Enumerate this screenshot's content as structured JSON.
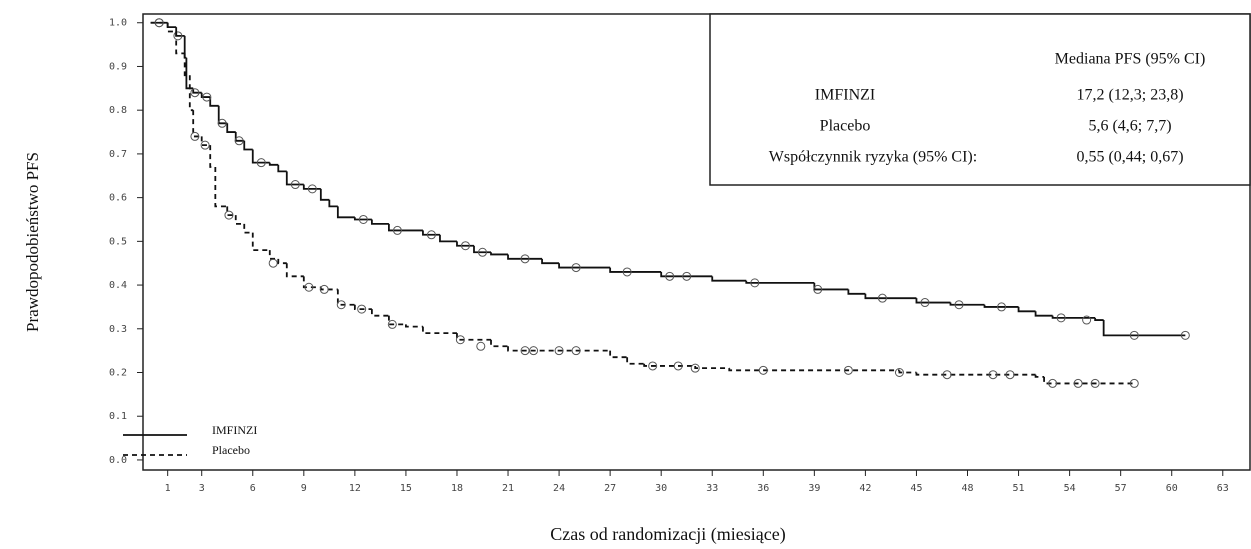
{
  "chart_data": {
    "type": "kaplan-meier",
    "xlabel": "Czas od randomizacji (miesiące)",
    "ylabel": "Prawdopodobieństwo PFS",
    "xlim": [
      -0.45,
      64.6
    ],
    "ylim": [
      -0.023,
      1.02
    ],
    "xticks": [
      1,
      3,
      6,
      9,
      12,
      15,
      18,
      21,
      24,
      27,
      30,
      33,
      36,
      39,
      42,
      45,
      48,
      51,
      54,
      57,
      60,
      63
    ],
    "yticks": [
      {
        "value": 0,
        "label": "0.0"
      },
      {
        "value": 0.1,
        "label": "0.1"
      },
      {
        "value": 0.2,
        "label": "0.2"
      },
      {
        "value": 0.3,
        "label": "0.3"
      },
      {
        "value": 0.4,
        "label": "0.4"
      },
      {
        "value": 0.5,
        "label": "0.5"
      },
      {
        "value": 0.6,
        "label": "0.6"
      },
      {
        "value": 0.7,
        "label": "0.7"
      },
      {
        "value": 0.8,
        "label": "0.8"
      },
      {
        "value": 0.9,
        "label": "0.9"
      },
      {
        "value": 1,
        "label": "1.0"
      }
    ],
    "series": [
      {
        "name": "IMFINZI",
        "color": "#111111",
        "dash": "solid",
        "x": [
          0,
          1,
          1.5,
          2,
          2.1,
          2.5,
          3,
          3.5,
          4,
          4.5,
          5,
          5.5,
          6,
          7,
          7.5,
          8,
          9,
          10,
          10.5,
          11,
          12,
          13,
          14,
          16,
          17,
          18,
          19,
          20,
          21,
          23,
          24,
          27,
          30,
          33,
          35,
          39,
          41,
          42,
          45,
          47,
          49,
          51,
          52,
          53,
          55.5,
          56
        ],
        "values": [
          1.0,
          0.99,
          0.97,
          0.92,
          0.85,
          0.84,
          0.83,
          0.81,
          0.77,
          0.75,
          0.73,
          0.71,
          0.68,
          0.675,
          0.66,
          0.63,
          0.62,
          0.595,
          0.58,
          0.555,
          0.55,
          0.54,
          0.525,
          0.515,
          0.5,
          0.49,
          0.475,
          0.47,
          0.46,
          0.45,
          0.44,
          0.43,
          0.42,
          0.41,
          0.405,
          0.39,
          0.38,
          0.37,
          0.36,
          0.355,
          0.35,
          0.34,
          0.33,
          0.325,
          0.32,
          0.285
        ],
        "censor_x": [
          0.5,
          1.6,
          2.6,
          3.3,
          4.2,
          5.2,
          6.5,
          8.5,
          9.5,
          12.5,
          14.5,
          16.5,
          18.5,
          19.5,
          22,
          25,
          28,
          30.5,
          31.5,
          35.5,
          39.2,
          43,
          45.5,
          47.5,
          50,
          53.5,
          55,
          57.8,
          60.8
        ],
        "censor_y": [
          1.0,
          0.97,
          0.84,
          0.83,
          0.77,
          0.73,
          0.68,
          0.63,
          0.62,
          0.55,
          0.525,
          0.515,
          0.49,
          0.475,
          0.46,
          0.44,
          0.43,
          0.42,
          0.42,
          0.405,
          0.39,
          0.37,
          0.36,
          0.355,
          0.35,
          0.325,
          0.32,
          0.285,
          0.285
        ]
      },
      {
        "name": "Placebo",
        "color": "#111111",
        "dash": "dashed",
        "x": [
          0,
          1,
          1.5,
          2,
          2.3,
          2.5,
          3,
          3.5,
          3.8,
          4.5,
          5,
          5.5,
          6,
          7,
          7.5,
          8,
          9,
          10,
          11,
          12,
          13,
          14,
          15,
          16,
          18,
          20,
          21,
          27,
          28,
          29,
          32,
          34,
          44,
          45,
          52,
          52.5
        ],
        "values": [
          1.0,
          0.98,
          0.93,
          0.88,
          0.8,
          0.74,
          0.72,
          0.67,
          0.58,
          0.56,
          0.54,
          0.52,
          0.48,
          0.46,
          0.45,
          0.42,
          0.395,
          0.39,
          0.355,
          0.345,
          0.33,
          0.31,
          0.305,
          0.29,
          0.275,
          0.26,
          0.25,
          0.235,
          0.22,
          0.215,
          0.21,
          0.205,
          0.2,
          0.195,
          0.19,
          0.175
        ],
        "censor_x": [
          0.5,
          2.6,
          3.2,
          4.6,
          7.2,
          9.3,
          10.2,
          11.2,
          12.4,
          14.2,
          18.2,
          19.4,
          22,
          22.5,
          24,
          25,
          29.5,
          31,
          32,
          36,
          41,
          44,
          46.8,
          49.5,
          50.5,
          53,
          54.5,
          55.5,
          57.8
        ],
        "censor_y": [
          1.0,
          0.74,
          0.72,
          0.56,
          0.45,
          0.395,
          0.39,
          0.355,
          0.345,
          0.31,
          0.275,
          0.26,
          0.25,
          0.25,
          0.25,
          0.25,
          0.215,
          0.215,
          0.21,
          0.205,
          0.205,
          0.2,
          0.195,
          0.195,
          0.195,
          0.175,
          0.175,
          0.175,
          0.175
        ]
      }
    ],
    "legend": "lower left",
    "table": {
      "header": "Mediana PFS (95% CI)",
      "rows": [
        [
          "IMFINZI",
          "17,2 (12,3; 23,8)"
        ],
        [
          "Placebo",
          "5,6 (4,6; 7,7)"
        ],
        [
          "Współczynnik ryzyka (95% CI):",
          "0,55 (0,44; 0,67)"
        ]
      ]
    }
  }
}
